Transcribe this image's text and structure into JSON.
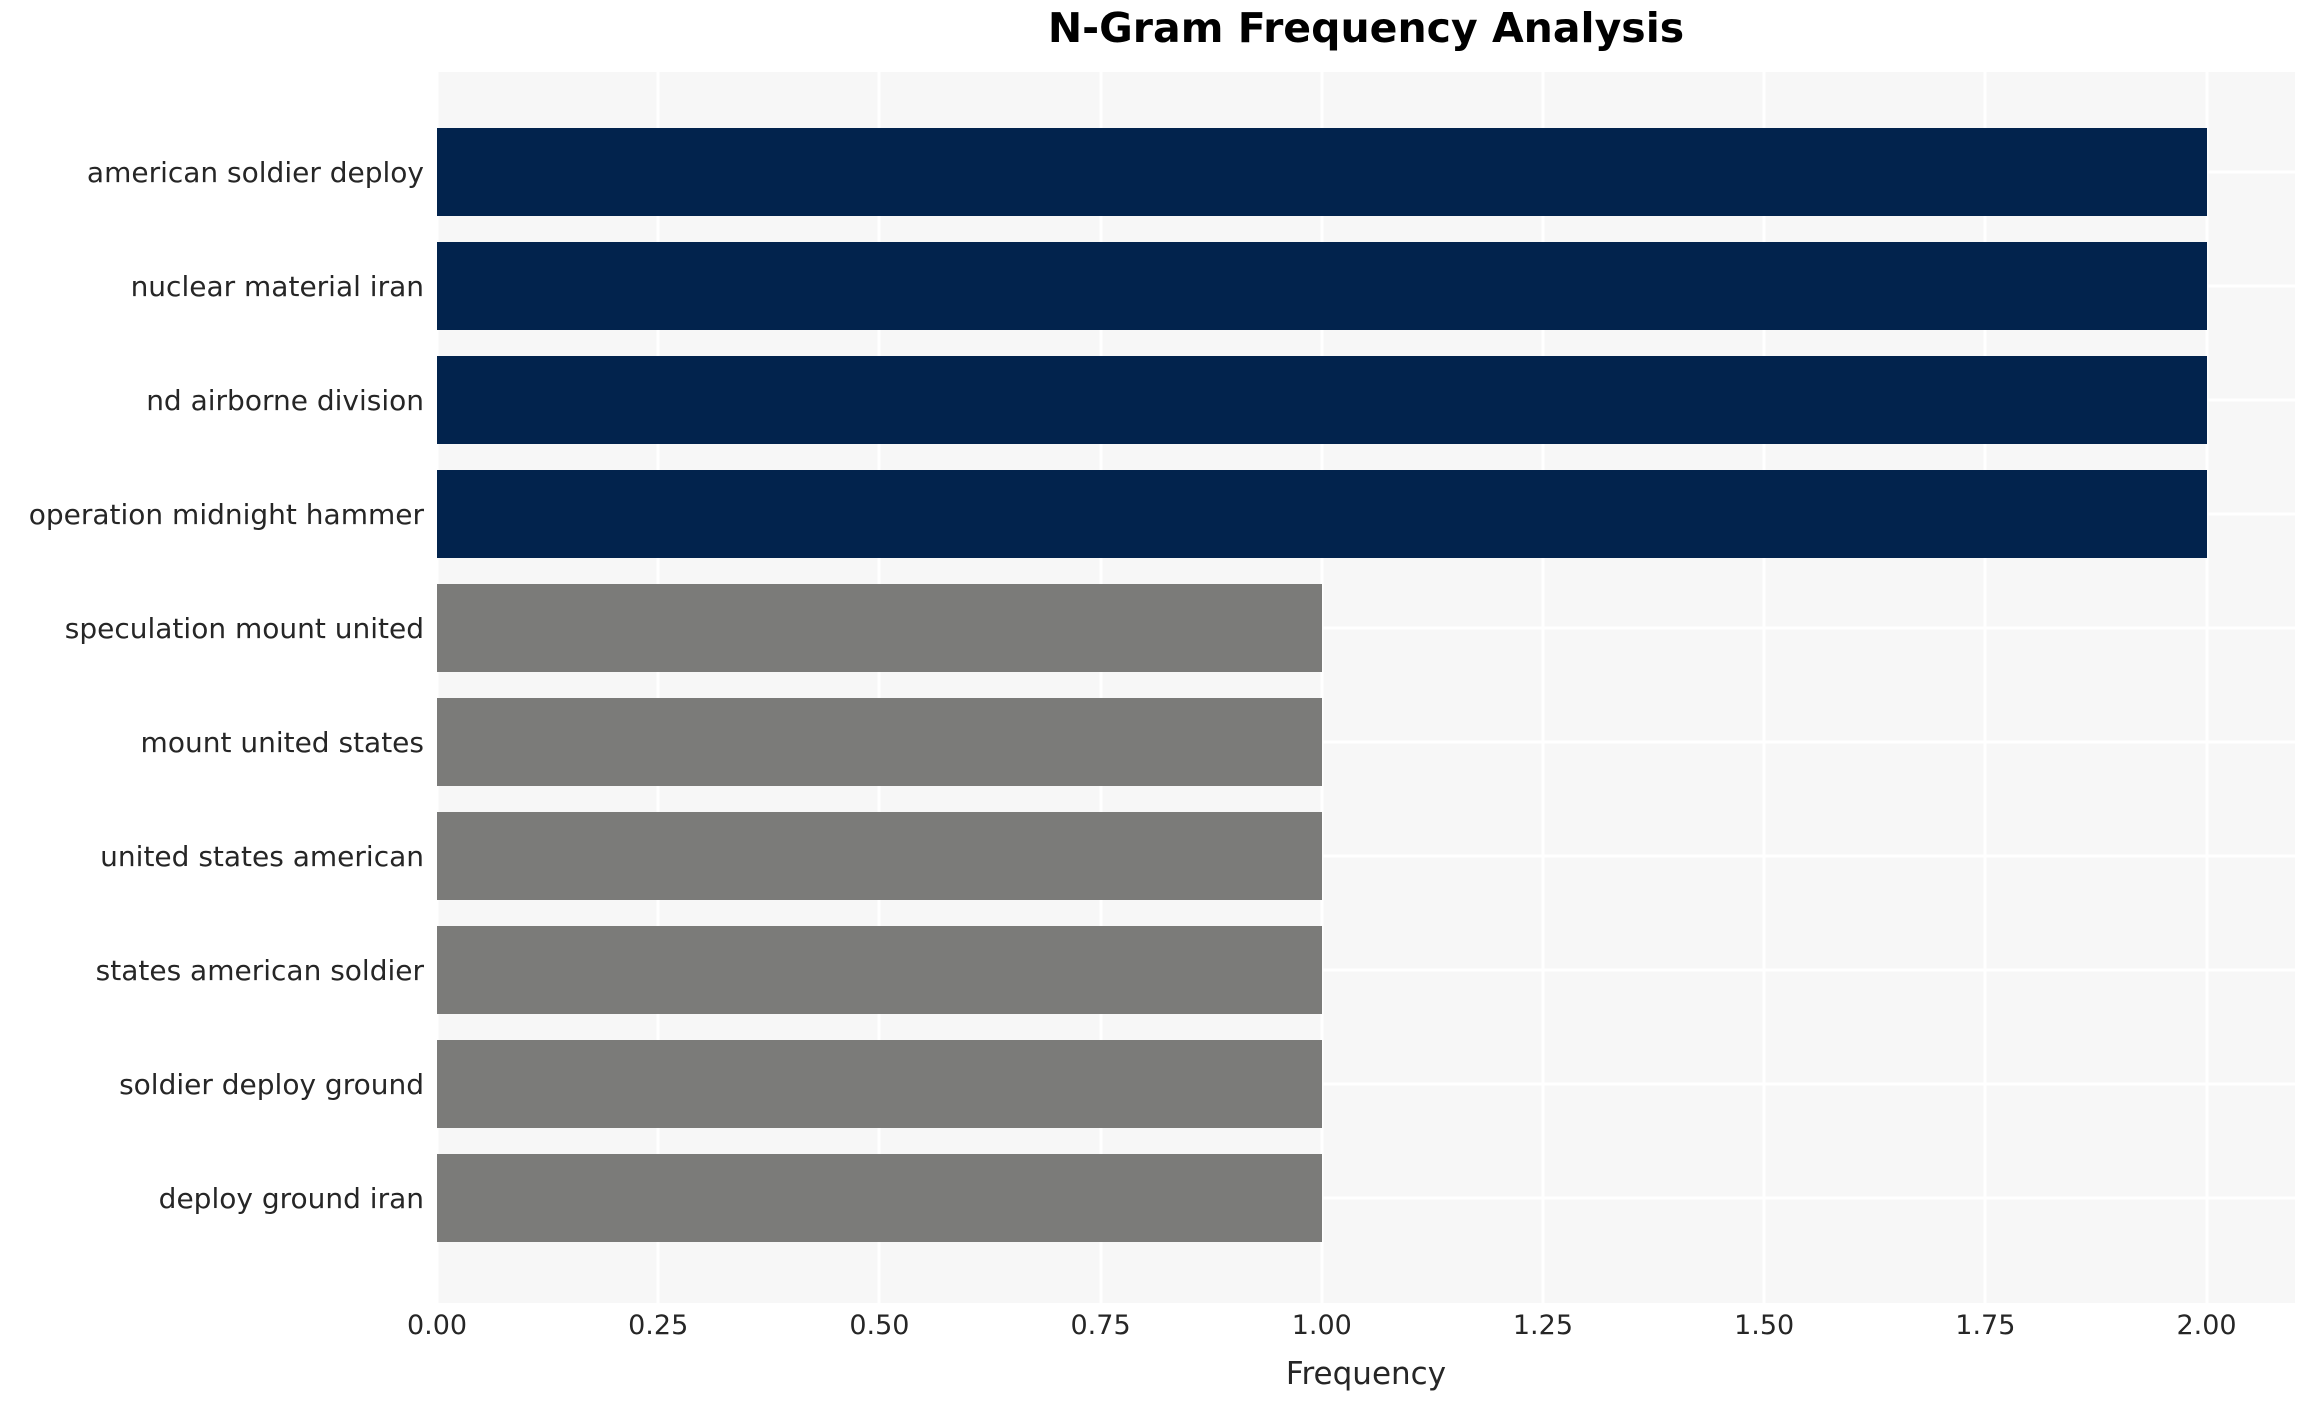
{
  "chart_data": {
    "type": "bar",
    "orientation": "horizontal",
    "title": "N-Gram Frequency Analysis",
    "xlabel": "Frequency",
    "ylabel": "",
    "categories": [
      "american soldier deploy",
      "nuclear material iran",
      "nd airborne division",
      "operation midnight hammer",
      "speculation mount united",
      "mount united states",
      "united states american",
      "states american soldier",
      "soldier deploy ground",
      "deploy ground iran"
    ],
    "values": [
      2,
      2,
      2,
      2,
      1,
      1,
      1,
      1,
      1,
      1
    ],
    "bar_colors": [
      "#02234d",
      "#02234d",
      "#02234d",
      "#02234d",
      "#7b7b79",
      "#7b7b79",
      "#7b7b79",
      "#7b7b79",
      "#7b7b79",
      "#7b7b79"
    ],
    "xticks": [
      {
        "value": 0.0,
        "label": "0.00"
      },
      {
        "value": 0.25,
        "label": "0.25"
      },
      {
        "value": 0.5,
        "label": "0.50"
      },
      {
        "value": 0.75,
        "label": "0.75"
      },
      {
        "value": 1.0,
        "label": "1.00"
      },
      {
        "value": 1.25,
        "label": "1.25"
      },
      {
        "value": 1.5,
        "label": "1.50"
      },
      {
        "value": 1.75,
        "label": "1.75"
      },
      {
        "value": 2.0,
        "label": "2.00"
      }
    ],
    "xlim": [
      0,
      2.1
    ],
    "grid": true,
    "legend": false,
    "colors": {
      "high_frequency_bar": "#02234d",
      "low_frequency_bar": "#7b7b79",
      "plot_background": "#f7f7f7",
      "gridline": "#ffffff",
      "text": "#262626",
      "title_text": "#000000",
      "page_background": "#ffffff"
    }
  }
}
